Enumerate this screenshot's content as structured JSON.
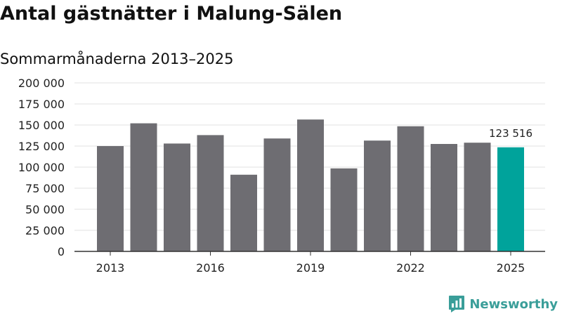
{
  "header": {
    "title": "Antal gästnätter i Malung-Sälen",
    "subtitle": "Sommarmånaderna 2013–2025"
  },
  "brand": {
    "name": "Newsworthy",
    "logo_icon": "bar-chart-speech-bubble-icon",
    "color": "#3a9e99"
  },
  "chart_data": {
    "type": "bar",
    "categories": [
      "2013",
      "2014",
      "2015",
      "2016",
      "2017",
      "2018",
      "2019",
      "2020",
      "2021",
      "2022",
      "2023",
      "2024",
      "2025"
    ],
    "values": [
      125000,
      152000,
      128000,
      138000,
      91000,
      134000,
      156500,
      98500,
      131500,
      148500,
      127500,
      129000,
      123516
    ],
    "xtick_labels": [
      "2013",
      "2016",
      "2019",
      "2022",
      "2025"
    ],
    "ytick_labels": [
      "0",
      "25 000",
      "50 000",
      "75 000",
      "100 000",
      "125 000",
      "150 000",
      "175 000",
      "200 000"
    ],
    "ylim": [
      0,
      200000
    ],
    "grid": true,
    "bar_color": "#6e6d72",
    "highlight_color": "#00a39b",
    "highlight_index": 12,
    "highlight_label": "123 516"
  }
}
